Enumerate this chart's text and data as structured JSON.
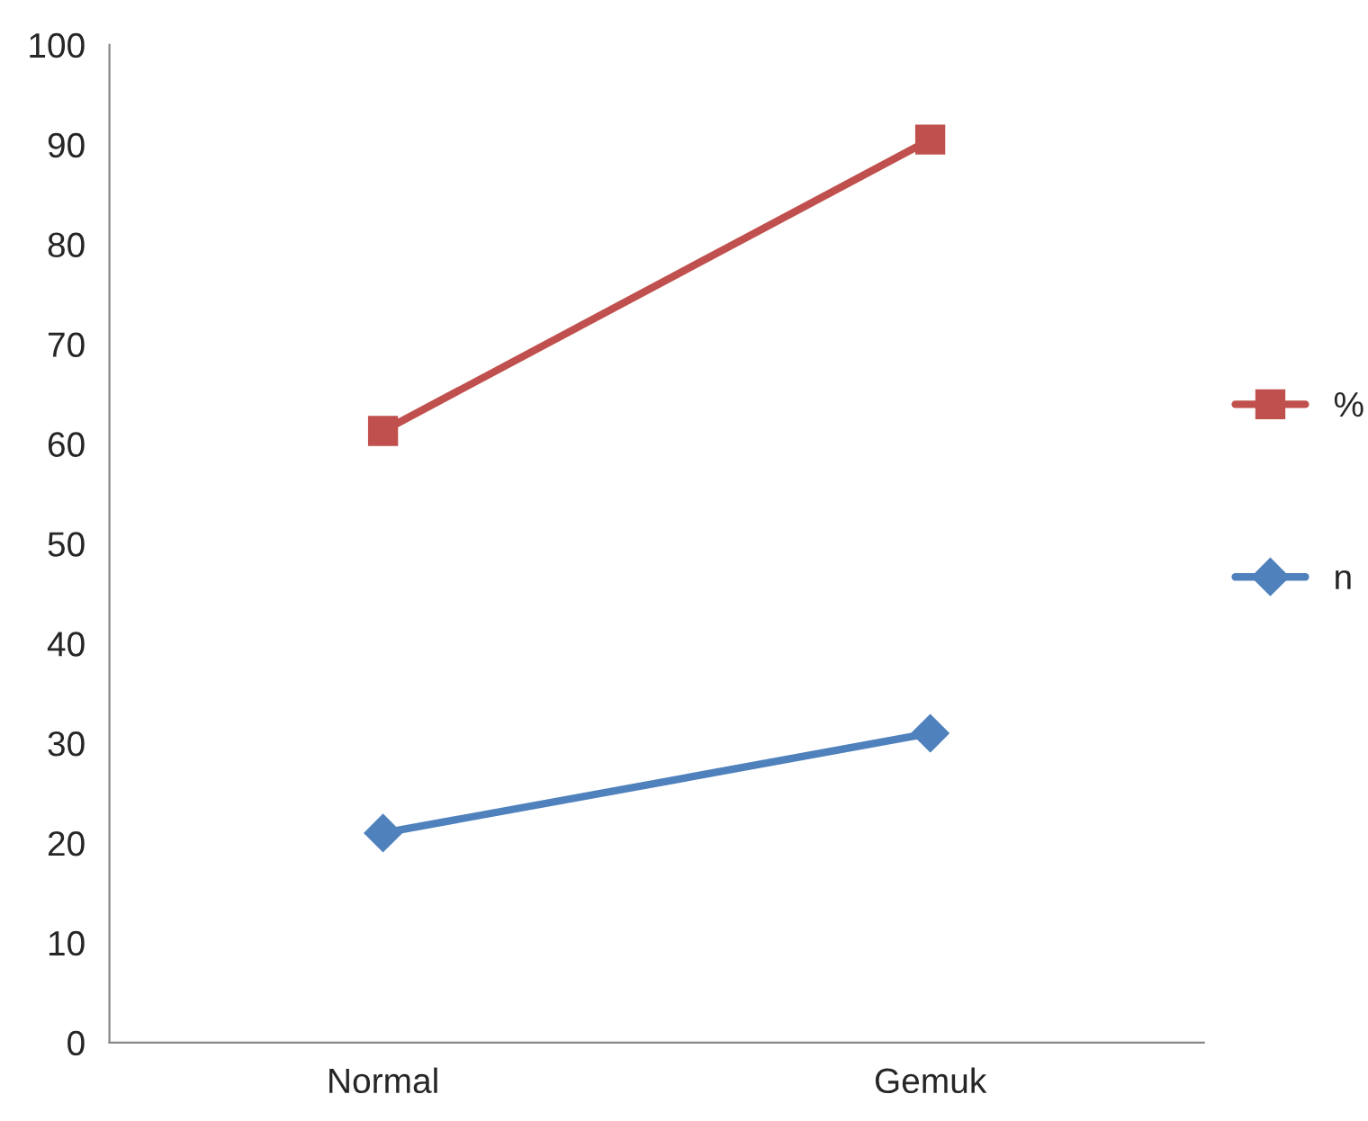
{
  "chart_data": {
    "type": "line",
    "categories": [
      "Normal",
      "Gemuk"
    ],
    "series": [
      {
        "name": "%",
        "color": "#c0504d",
        "marker": "square",
        "values": [
          61.3,
          90.5
        ]
      },
      {
        "name": "n",
        "color": "#4f81bd",
        "marker": "diamond",
        "values": [
          21,
          31
        ]
      }
    ],
    "ylim": [
      0,
      100
    ],
    "yticks": [
      0,
      10,
      20,
      30,
      40,
      50,
      60,
      70,
      80,
      90,
      100
    ],
    "grid": false,
    "legend": "right",
    "line_style": "solid"
  }
}
